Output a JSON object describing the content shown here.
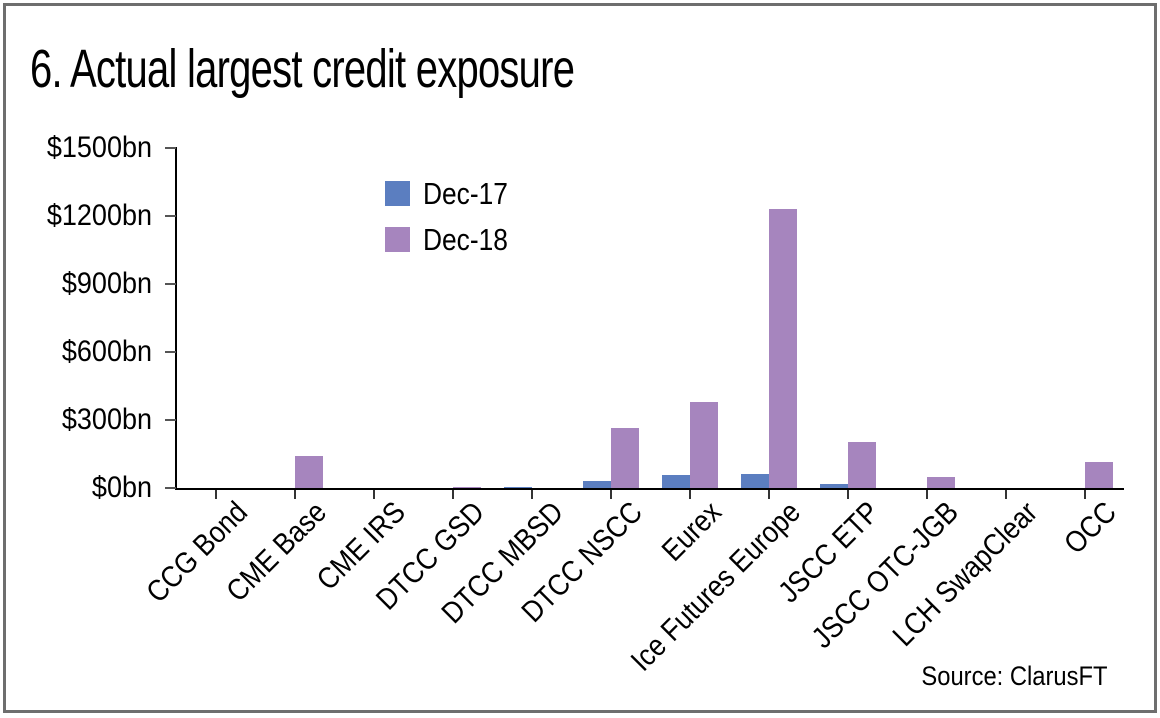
{
  "title": "6. Actual largest credit exposure",
  "source_text": "Source: ClarusFT",
  "chart_data": {
    "type": "bar",
    "title": "6. Actual largest credit exposure",
    "categories": [
      "CCG Bond",
      "CME Base",
      "CME IRS",
      "DTCC GSD",
      "DTCC MBSD",
      "DTCC NSCC",
      "Eurex",
      "Ice Futures Europe",
      "JSCC ETP",
      "JSCC OTC-JGB",
      "LCH SwapClear",
      "OCC"
    ],
    "series": [
      {
        "name": "Dec-17",
        "color": "#5b7ec0",
        "values": [
          0,
          2,
          0,
          0,
          3,
          30,
          57,
          62,
          18,
          0,
          0,
          0
        ]
      },
      {
        "name": "Dec-18",
        "color": "#a685be",
        "values": [
          1,
          140,
          2,
          3,
          2,
          265,
          380,
          1230,
          205,
          50,
          0,
          115
        ]
      }
    ],
    "unit": "bn USD",
    "y_tick_labels": [
      "$1500bn",
      "$1200bn",
      "$900bn",
      "$600bn",
      "$300bn",
      "$0bn"
    ],
    "y_tick_values": [
      1500,
      1200,
      900,
      600,
      300,
      0
    ],
    "ylim": [
      0,
      1500
    ],
    "grid": false,
    "legend_position": "upper-left-inside",
    "x_label_rotation_deg": 45,
    "annotation": "Source: ClarusFT"
  }
}
